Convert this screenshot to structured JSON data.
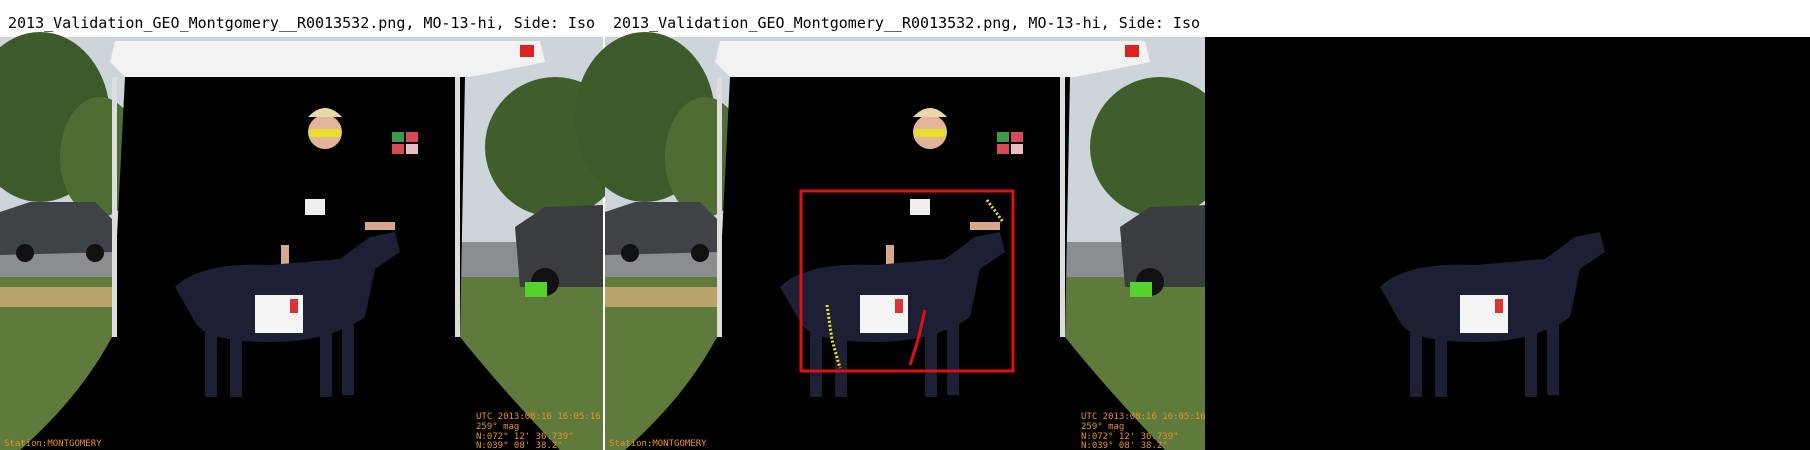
{
  "panels": [
    {
      "title": "2013_Validation_GEO_Montgomery__R0013532.png, MO-13-hi, Side: Iso"
    },
    {
      "title": "2013_Validation_GEO_Montgomery__R0013532.png, MO-13-hi, Side: Iso"
    }
  ],
  "stamp": {
    "lines": [
      "UTC 2013:08:16 16:05:16",
      "259° mag",
      "N:072° 12' 36.739\"",
      "N:039° 08' 38.2\""
    ],
    "station": "Station:MONTGOMERY"
  }
}
